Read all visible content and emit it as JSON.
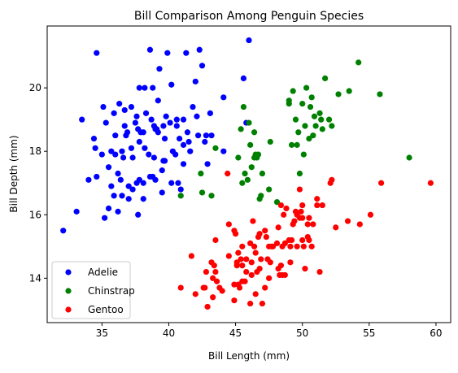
{
  "chart_data": {
    "type": "scatter",
    "title": "Bill Comparison Among Penguin Species",
    "xlabel": "Bill Length (mm)",
    "ylabel": "Bill Depth (mm)",
    "xlim": [
      30.9,
      61.1
    ],
    "ylim": [
      12.6,
      21.95
    ],
    "xticks": [
      35,
      40,
      45,
      50,
      55,
      60
    ],
    "yticks": [
      14,
      16,
      18,
      20
    ],
    "grid": false,
    "legend_position": "lower-left",
    "series": [
      {
        "name": "Adelie",
        "color": "#0000ff",
        "points": [
          [
            32.1,
            15.5
          ],
          [
            33.1,
            16.1
          ],
          [
            33.5,
            19.0
          ],
          [
            34.0,
            17.1
          ],
          [
            34.4,
            18.4
          ],
          [
            34.5,
            18.1
          ],
          [
            34.6,
            21.1
          ],
          [
            34.6,
            17.2
          ],
          [
            35.0,
            17.9
          ],
          [
            35.1,
            19.4
          ],
          [
            35.2,
            15.9
          ],
          [
            35.3,
            18.9
          ],
          [
            35.5,
            16.2
          ],
          [
            35.5,
            17.5
          ],
          [
            35.7,
            16.9
          ],
          [
            35.7,
            18.0
          ],
          [
            35.9,
            19.2
          ],
          [
            35.9,
            16.6
          ],
          [
            36.0,
            17.9
          ],
          [
            36.0,
            18.5
          ],
          [
            36.2,
            16.1
          ],
          [
            36.2,
            17.3
          ],
          [
            36.3,
            19.5
          ],
          [
            36.4,
            17.1
          ],
          [
            36.5,
            16.6
          ],
          [
            36.5,
            18.0
          ],
          [
            36.6,
            17.8
          ],
          [
            36.7,
            18.8
          ],
          [
            36.7,
            19.3
          ],
          [
            36.8,
            18.5
          ],
          [
            36.9,
            18.6
          ],
          [
            37.0,
            16.9
          ],
          [
            37.0,
            16.5
          ],
          [
            37.2,
            18.1
          ],
          [
            37.2,
            19.4
          ],
          [
            37.3,
            16.8
          ],
          [
            37.3,
            17.8
          ],
          [
            37.5,
            18.9
          ],
          [
            37.6,
            17.0
          ],
          [
            37.6,
            19.1
          ],
          [
            37.7,
            16.0
          ],
          [
            37.7,
            18.7
          ],
          [
            37.8,
            17.1
          ],
          [
            37.8,
            18.3
          ],
          [
            37.8,
            20.0
          ],
          [
            37.9,
            18.6
          ],
          [
            38.1,
            18.6
          ],
          [
            38.1,
            17.0
          ],
          [
            38.1,
            16.5
          ],
          [
            38.2,
            18.1
          ],
          [
            38.2,
            20.0
          ],
          [
            38.3,
            19.2
          ],
          [
            38.5,
            17.9
          ],
          [
            38.6,
            21.2
          ],
          [
            38.6,
            17.2
          ],
          [
            38.7,
            19.0
          ],
          [
            38.8,
            17.2
          ],
          [
            38.8,
            20.0
          ],
          [
            38.9,
            17.8
          ],
          [
            38.9,
            18.8
          ],
          [
            39.0,
            17.1
          ],
          [
            39.0,
            18.7
          ],
          [
            39.1,
            18.7
          ],
          [
            39.2,
            19.6
          ],
          [
            39.2,
            18.6
          ],
          [
            39.3,
            20.6
          ],
          [
            39.5,
            17.4
          ],
          [
            39.5,
            16.7
          ],
          [
            39.6,
            17.7
          ],
          [
            39.6,
            18.8
          ],
          [
            39.7,
            18.4
          ],
          [
            39.7,
            17.7
          ],
          [
            39.8,
            19.1
          ],
          [
            39.9,
            21.1
          ],
          [
            40.1,
            18.9
          ],
          [
            40.2,
            17.0
          ],
          [
            40.2,
            20.1
          ],
          [
            40.3,
            18.0
          ],
          [
            40.5,
            17.9
          ],
          [
            40.6,
            18.8
          ],
          [
            40.6,
            19.0
          ],
          [
            40.7,
            17.0
          ],
          [
            40.8,
            18.4
          ],
          [
            40.9,
            16.8
          ],
          [
            41.1,
            18.2
          ],
          [
            41.1,
            17.6
          ],
          [
            41.1,
            19.0
          ],
          [
            41.3,
            21.1
          ],
          [
            41.4,
            18.6
          ],
          [
            41.5,
            18.3
          ],
          [
            41.6,
            18.0
          ],
          [
            41.8,
            19.4
          ],
          [
            42.0,
            20.2
          ],
          [
            42.1,
            19.1
          ],
          [
            42.2,
            18.5
          ],
          [
            42.3,
            21.2
          ],
          [
            42.5,
            20.7
          ],
          [
            42.7,
            18.3
          ],
          [
            42.8,
            18.5
          ],
          [
            42.9,
            17.6
          ],
          [
            43.1,
            19.2
          ],
          [
            43.2,
            18.5
          ],
          [
            44.1,
            19.7
          ],
          [
            44.1,
            18.0
          ],
          [
            45.6,
            20.3
          ],
          [
            45.8,
            18.9
          ],
          [
            46.0,
            21.5
          ]
        ]
      },
      {
        "name": "Chinstrap",
        "color": "#008000",
        "points": [
          [
            40.9,
            16.6
          ],
          [
            42.4,
            17.3
          ],
          [
            42.5,
            16.7
          ],
          [
            43.2,
            16.6
          ],
          [
            43.5,
            18.1
          ],
          [
            45.2,
            17.8
          ],
          [
            45.4,
            18.7
          ],
          [
            45.5,
            17.0
          ],
          [
            45.6,
            19.4
          ],
          [
            45.7,
            17.3
          ],
          [
            46.0,
            18.9
          ],
          [
            46.1,
            18.2
          ],
          [
            46.2,
            17.5
          ],
          [
            46.4,
            17.8
          ],
          [
            46.5,
            17.9
          ],
          [
            46.6,
            17.8
          ],
          [
            46.7,
            17.9
          ],
          [
            46.8,
            16.5
          ],
          [
            46.9,
            16.6
          ],
          [
            47.0,
            17.3
          ],
          [
            47.5,
            16.8
          ],
          [
            48.1,
            16.4
          ],
          [
            49.0,
            19.5
          ],
          [
            49.2,
            18.2
          ],
          [
            49.3,
            19.9
          ],
          [
            49.5,
            19.0
          ],
          [
            49.6,
            18.2
          ],
          [
            49.7,
            18.6
          ],
          [
            49.8,
            17.3
          ],
          [
            50.0,
            19.5
          ],
          [
            50.1,
            17.9
          ],
          [
            50.2,
            18.8
          ],
          [
            50.3,
            20.0
          ],
          [
            50.5,
            18.4
          ],
          [
            50.6,
            19.4
          ],
          [
            50.7,
            19.7
          ],
          [
            50.8,
            18.5
          ],
          [
            50.9,
            19.1
          ],
          [
            51.0,
            18.8
          ],
          [
            51.3,
            19.2
          ],
          [
            51.4,
            19.0
          ],
          [
            51.5,
            18.7
          ],
          [
            51.7,
            20.3
          ],
          [
            52.0,
            19.0
          ],
          [
            52.2,
            18.8
          ],
          [
            52.7,
            19.8
          ],
          [
            53.5,
            19.9
          ],
          [
            54.2,
            20.8
          ],
          [
            55.8,
            19.8
          ],
          [
            58.0,
            17.8
          ],
          [
            45.9,
            17.1
          ],
          [
            46.4,
            18.6
          ],
          [
            47.6,
            18.3
          ],
          [
            49.0,
            19.6
          ]
        ]
      },
      {
        "name": "Gentoo",
        "color": "#ff0000",
        "points": [
          [
            40.9,
            13.7
          ],
          [
            41.7,
            14.7
          ],
          [
            42.0,
            13.5
          ],
          [
            42.6,
            13.7
          ],
          [
            42.7,
            13.7
          ],
          [
            42.8,
            14.2
          ],
          [
            42.9,
            13.1
          ],
          [
            43.2,
            14.5
          ],
          [
            43.3,
            13.4
          ],
          [
            43.3,
            14.0
          ],
          [
            43.4,
            14.4
          ],
          [
            43.5,
            14.2
          ],
          [
            43.5,
            15.2
          ],
          [
            43.6,
            13.9
          ],
          [
            43.8,
            13.7
          ],
          [
            44.0,
            13.6
          ],
          [
            44.4,
            17.3
          ],
          [
            44.5,
            14.7
          ],
          [
            44.5,
            15.7
          ],
          [
            44.9,
            13.3
          ],
          [
            44.9,
            13.8
          ],
          [
            45.0,
            15.4
          ],
          [
            45.1,
            14.5
          ],
          [
            45.1,
            14.4
          ],
          [
            45.2,
            14.8
          ],
          [
            45.2,
            13.8
          ],
          [
            45.3,
            13.7
          ],
          [
            45.4,
            14.6
          ],
          [
            45.5,
            13.9
          ],
          [
            45.5,
            15.0
          ],
          [
            45.7,
            13.9
          ],
          [
            45.8,
            14.2
          ],
          [
            45.8,
            14.6
          ],
          [
            46.1,
            13.2
          ],
          [
            46.1,
            15.1
          ],
          [
            46.2,
            14.1
          ],
          [
            46.2,
            14.5
          ],
          [
            46.3,
            15.8
          ],
          [
            46.4,
            15.0
          ],
          [
            46.5,
            13.5
          ],
          [
            46.5,
            14.8
          ],
          [
            46.6,
            14.2
          ],
          [
            46.7,
            15.3
          ],
          [
            46.8,
            14.3
          ],
          [
            46.8,
            15.4
          ],
          [
            46.9,
            14.6
          ],
          [
            47.2,
            13.7
          ],
          [
            47.2,
            15.5
          ],
          [
            47.3,
            15.3
          ],
          [
            47.4,
            14.6
          ],
          [
            47.5,
            14.0
          ],
          [
            47.5,
            15.0
          ],
          [
            47.6,
            14.5
          ],
          [
            47.7,
            15.0
          ],
          [
            47.8,
            15.0
          ],
          [
            48.1,
            15.1
          ],
          [
            48.2,
            14.3
          ],
          [
            48.2,
            15.6
          ],
          [
            48.4,
            14.4
          ],
          [
            48.4,
            16.3
          ],
          [
            48.5,
            14.1
          ],
          [
            48.5,
            15.0
          ],
          [
            48.6,
            16.0
          ],
          [
            48.7,
            14.1
          ],
          [
            48.7,
            15.1
          ],
          [
            48.8,
            16.2
          ],
          [
            49.0,
            15.2
          ],
          [
            49.1,
            14.5
          ],
          [
            49.1,
            15.0
          ],
          [
            49.2,
            15.2
          ],
          [
            49.3,
            15.7
          ],
          [
            49.4,
            15.8
          ],
          [
            49.5,
            16.1
          ],
          [
            49.6,
            15.0
          ],
          [
            49.6,
            16.0
          ],
          [
            49.8,
            15.9
          ],
          [
            49.8,
            16.8
          ],
          [
            50.0,
            15.2
          ],
          [
            50.0,
            15.9
          ],
          [
            50.1,
            15.0
          ],
          [
            50.2,
            14.3
          ],
          [
            50.4,
            15.3
          ],
          [
            50.5,
            15.2
          ],
          [
            50.5,
            15.9
          ],
          [
            50.7,
            15.0
          ],
          [
            50.8,
            15.7
          ],
          [
            51.1,
            16.3
          ],
          [
            51.1,
            16.5
          ],
          [
            51.3,
            14.2
          ],
          [
            51.5,
            16.3
          ],
          [
            52.1,
            17.0
          ],
          [
            52.2,
            17.1
          ],
          [
            52.5,
            15.6
          ],
          [
            53.4,
            15.8
          ],
          [
            54.3,
            15.7
          ],
          [
            55.1,
            16.0
          ],
          [
            55.9,
            17.0
          ],
          [
            59.6,
            17.0
          ],
          [
            50.0,
            16.3
          ],
          [
            49.9,
            16.1
          ],
          [
            47.0,
            13.2
          ],
          [
            45.5,
            14.4
          ],
          [
            44.9,
            15.5
          ],
          [
            48.3,
            14.1
          ],
          [
            50.4,
            15.7
          ]
        ]
      }
    ]
  }
}
